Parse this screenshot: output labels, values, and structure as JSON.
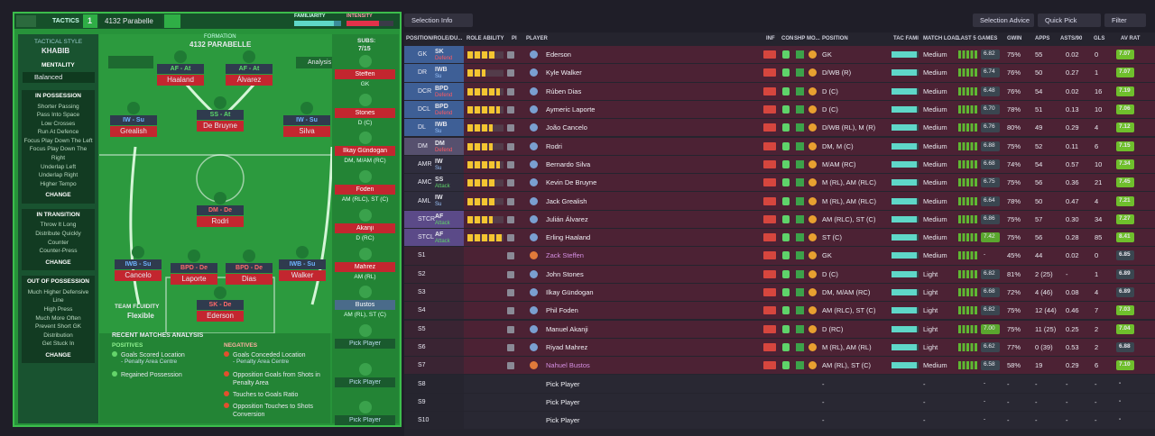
{
  "header": {
    "tab": "TACTICS",
    "slot": "1",
    "tactic": "4132 Parabelle",
    "familiarity": "FAMILIARITY",
    "intensity": "INTENSITY"
  },
  "sidebar": {
    "style_label": "TACTICAL STYLE",
    "style": "KHABIB",
    "mentality_label": "MENTALITY",
    "mentality": "Balanced",
    "sections": [
      {
        "title": "IN POSSESSION",
        "items": [
          "Shorter Passing",
          "Pass Into Space",
          "Low Crosses",
          "Run At Defence",
          "Focus Play Down The Left",
          "Focus Play Down The Right",
          "Underlap Left",
          "Underlap Right",
          "Higher Tempo"
        ],
        "button": "CHANGE"
      },
      {
        "title": "IN TRANSITION",
        "items": [
          "Throw It Long",
          "Distribute Quickly",
          "Counter",
          "Counter-Press"
        ],
        "button": "CHANGE"
      },
      {
        "title": "OUT OF POSSESSION",
        "items": [
          "Much Higher Defensive Line",
          "High Press",
          "Much More Often",
          "Prevent Short GK Distribution",
          "Get Stuck In"
        ],
        "button": "CHANGE"
      }
    ]
  },
  "pitch": {
    "formation_label": "FORMATION",
    "formation": "4132 PARABELLE",
    "analysis": "Analysis",
    "subs_label": "SUBS:",
    "subs_count": "7/15",
    "fluidity_label": "TEAM FLUIDITY",
    "fluidity": "Flexible",
    "players": [
      {
        "role": "AF - At",
        "name": "Haaland"
      },
      {
        "role": "AF - At",
        "name": "Álvarez"
      },
      {
        "role": "IW - Su",
        "name": "Grealish"
      },
      {
        "role": "SS - At",
        "name": "De Bruyne"
      },
      {
        "role": "IW - Su",
        "name": "Silva"
      },
      {
        "role": "DM - De",
        "name": "Rodri"
      },
      {
        "role": "IWB - Su",
        "name": "Cancelo"
      },
      {
        "role": "BPD - De",
        "name": "Laporte"
      },
      {
        "role": "BPD - De",
        "name": "Dias"
      },
      {
        "role": "IWB - Su",
        "name": "Walker"
      },
      {
        "role": "SK - De",
        "name": "Ederson"
      }
    ]
  },
  "subs": [
    {
      "name": "Steffen",
      "position": "GK"
    },
    {
      "name": "Stones",
      "position": "D (C)"
    },
    {
      "name": "Ilkay Gündogan",
      "position": "DM, M/AM (RC)"
    },
    {
      "name": "Foden",
      "position": "AM (RLC), ST (C)"
    },
    {
      "name": "Akanji",
      "position": "D (RC)"
    },
    {
      "name": "Mahrez",
      "position": "AM (RL)"
    },
    {
      "name": "Bustos",
      "position": "AM (RL), ST (C)"
    },
    {
      "name": "Pick Player"
    },
    {
      "name": "Pick Player"
    },
    {
      "name": "Pick Player"
    }
  ],
  "analysis": {
    "title": "RECENT MATCHES ANALYSIS",
    "positives_label": "POSITIVES",
    "positives": [
      {
        "text": "Goals Scored Location",
        "detail": "- Penalty Area Centre"
      },
      {
        "text": "Regained Possession"
      }
    ],
    "negatives_label": "NEGATIVES",
    "negatives": [
      {
        "text": "Goals Conceded Location",
        "detail": "- Penalty Area Centre"
      },
      {
        "text": "Opposition Goals from Shots in Penalty Area"
      },
      {
        "text": "Touches to Goals Ratio"
      },
      {
        "text": "Opposition Touches to Shots Conversion"
      }
    ]
  },
  "toolbar": {
    "selection_info": "Selection Info",
    "selection_advice": "Selection Advice",
    "quick_pick": "Quick Pick",
    "filter": "Filter"
  },
  "table": {
    "columns": [
      "POSITION/ROLE/DU...",
      "ROLE ABILITY",
      "PI",
      "PLAYER",
      "INF",
      "CON",
      "SHP",
      "MO...",
      "POSITION",
      "TAC FAMI",
      "MATCH LOAD",
      "LAST 5 GAMES",
      "GWIN",
      "APPS",
      "ASTS/90",
      "GLS",
      "AV RAT"
    ],
    "rows": [
      {
        "pos": "GK",
        "role": "SK",
        "duty": "Defend",
        "stars": 4,
        "name": "Ederson",
        "position": "GK",
        "load": "Medium",
        "rating": "6.82",
        "gwin": "75%",
        "apps": "55",
        "asts": "0.02",
        "gls": "0",
        "avrat": "7.07"
      },
      {
        "pos": "DR",
        "role": "IWB",
        "duty": "Su",
        "stars": 2.5,
        "name": "Kyle Walker",
        "position": "D/WB (R)",
        "load": "Medium",
        "rating": "6.74",
        "gwin": "76%",
        "apps": "50",
        "asts": "0.27",
        "gls": "1",
        "avrat": "7.07"
      },
      {
        "pos": "DCR",
        "role": "BPD",
        "duty": "Defend",
        "stars": 4.5,
        "name": "Rúben Dias",
        "position": "D (C)",
        "load": "Medium",
        "rating": "6.48",
        "gwin": "76%",
        "apps": "54",
        "asts": "0.02",
        "gls": "16",
        "avrat": "7.19"
      },
      {
        "pos": "DCL",
        "role": "BPD",
        "duty": "Defend",
        "stars": 4.5,
        "name": "Aymeric Laporte",
        "position": "D (C)",
        "load": "Medium",
        "rating": "6.70",
        "gwin": "78%",
        "apps": "51",
        "asts": "0.13",
        "gls": "10",
        "avrat": "7.06"
      },
      {
        "pos": "DL",
        "role": "IWB",
        "duty": "Su",
        "stars": 3.5,
        "name": "João Cancelo",
        "position": "D/WB (RL), M (R)",
        "load": "Medium",
        "rating": "6.76",
        "gwin": "80%",
        "apps": "49",
        "asts": "0.29",
        "gls": "4",
        "avrat": "7.12"
      },
      {
        "pos": "DM",
        "role": "DM",
        "duty": "Defend",
        "stars": 3.5,
        "name": "Rodri",
        "position": "DM, M (C)",
        "load": "Medium",
        "rating": "6.88",
        "gwin": "75%",
        "apps": "52",
        "asts": "0.11",
        "gls": "6",
        "avrat": "7.15"
      },
      {
        "pos": "AMR",
        "role": "IW",
        "duty": "Su",
        "stars": 4.5,
        "name": "Bernardo Silva",
        "position": "M/AM (RC)",
        "load": "Medium",
        "rating": "6.68",
        "gwin": "74%",
        "apps": "54",
        "asts": "0.57",
        "gls": "10",
        "avrat": "7.34"
      },
      {
        "pos": "AMC",
        "role": "SS",
        "duty": "Attack",
        "stars": 4,
        "name": "Kevin De Bruyne",
        "position": "M (RL), AM (RLC)",
        "load": "Medium",
        "rating": "6.75",
        "gwin": "75%",
        "apps": "56",
        "asts": "0.36",
        "gls": "21",
        "avrat": "7.45"
      },
      {
        "pos": "AML",
        "role": "IW",
        "duty": "Su",
        "stars": 4,
        "name": "Jack Grealish",
        "position": "M (RL), AM (RLC)",
        "load": "Medium",
        "rating": "6.64",
        "gwin": "78%",
        "apps": "50",
        "asts": "0.47",
        "gls": "4",
        "avrat": "7.21"
      },
      {
        "pos": "STCR",
        "role": "AF",
        "duty": "Attack",
        "stars": 3.5,
        "name": "Julián Álvarez",
        "position": "AM (RLC), ST (C)",
        "load": "Medium",
        "rating": "6.86",
        "gwin": "75%",
        "apps": "57",
        "asts": "0.30",
        "gls": "34",
        "avrat": "7.27"
      },
      {
        "pos": "STCL",
        "role": "AF",
        "duty": "Attack",
        "stars": 5,
        "name": "Erling Haaland",
        "position": "ST (C)",
        "load": "Medium",
        "rating": "7.42",
        "gwin": "75%",
        "apps": "56",
        "asts": "0.28",
        "gls": "85",
        "avrat": "8.41"
      },
      {
        "pos": "S1",
        "name": "Zack Steffen",
        "name_color": "#d48ee0",
        "position": "GK",
        "load": "Medium",
        "rating": "-",
        "gwin": "45%",
        "apps": "44",
        "asts": "0.02",
        "gls": "0",
        "avrat": "6.85"
      },
      {
        "pos": "S2",
        "name": "John Stones",
        "position": "D (C)",
        "load": "Light",
        "rating": "6.82",
        "gwin": "81%",
        "apps": "2 (25)",
        "asts": "-",
        "gls": "1",
        "avrat": "6.89"
      },
      {
        "pos": "S3",
        "name": "Ilkay Gündogan",
        "position": "DM, M/AM (RC)",
        "load": "Light",
        "rating": "6.68",
        "gwin": "72%",
        "apps": "4 (46)",
        "asts": "0.08",
        "gls": "4",
        "avrat": "6.89"
      },
      {
        "pos": "S4",
        "name": "Phil Foden",
        "position": "AM (RLC), ST (C)",
        "load": "Light",
        "rating": "6.82",
        "gwin": "75%",
        "apps": "12 (44)",
        "asts": "0.46",
        "gls": "7",
        "avrat": "7.03"
      },
      {
        "pos": "S5",
        "name": "Manuel Akanji",
        "position": "D (RC)",
        "load": "Light",
        "rating": "7.00",
        "gwin": "75%",
        "apps": "11 (25)",
        "asts": "0.25",
        "gls": "2",
        "avrat": "7.04"
      },
      {
        "pos": "S6",
        "name": "Riyad Mahrez",
        "position": "M (RL), AM (RL)",
        "load": "Light",
        "rating": "6.62",
        "gwin": "77%",
        "apps": "0 (39)",
        "asts": "0.53",
        "gls": "2",
        "avrat": "6.88"
      },
      {
        "pos": "S7",
        "name": "Nahuel Bustos",
        "name_color": "#d48ee0",
        "position": "AM (RL), ST (C)",
        "load": "Medium",
        "rating": "6.58",
        "gwin": "58%",
        "apps": "19",
        "asts": "0.29",
        "gls": "6",
        "avrat": "7.10"
      },
      {
        "pos": "S8",
        "name": "Pick Player",
        "position": "-",
        "load": "-",
        "rating": "-",
        "gwin": "-",
        "apps": "-",
        "asts": "-",
        "gls": "-",
        "avrat": "-"
      },
      {
        "pos": "S9",
        "name": "Pick Player",
        "position": "-",
        "load": "-",
        "rating": "-",
        "gwin": "-",
        "apps": "-",
        "asts": "-",
        "gls": "-",
        "avrat": "-"
      },
      {
        "pos": "S10",
        "name": "Pick Player",
        "position": "-",
        "load": "-",
        "rating": "-",
        "gwin": "-",
        "apps": "-",
        "asts": "-",
        "gls": "-",
        "avrat": "-"
      }
    ]
  }
}
